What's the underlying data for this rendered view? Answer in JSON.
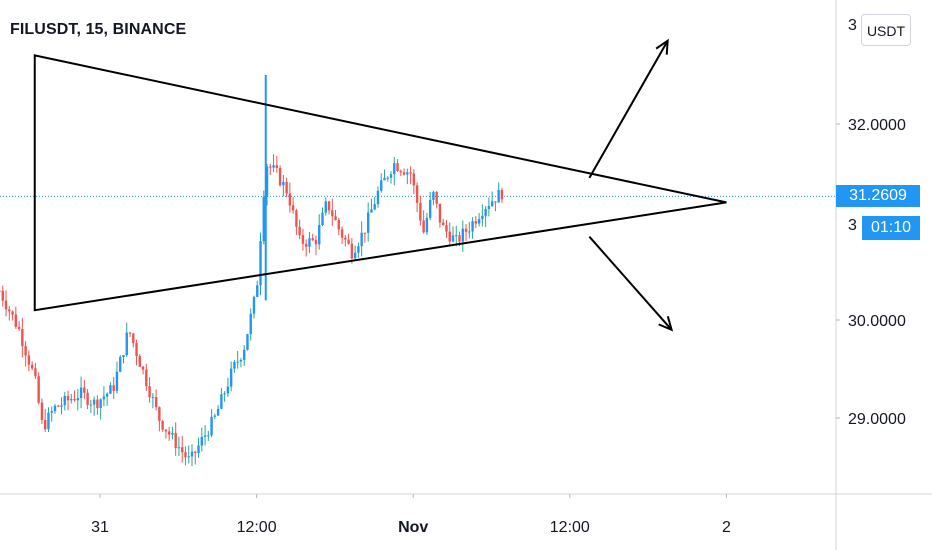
{
  "header": {
    "title": "FILUSDT, 15, BINANCE"
  },
  "scale": {
    "unit_button": "USDT"
  },
  "last_price": {
    "value": "31.2609",
    "countdown": "01:10",
    "line_color": "#2196f3"
  },
  "colors": {
    "up": "#26a69a",
    "up_body": "#2196f3",
    "down": "#ef5350",
    "text": "#131722",
    "grid": "#e0e3eb"
  },
  "chart_data": {
    "type": "candlestick",
    "symbol": "FILUSDT",
    "interval": "15",
    "exchange": "BINANCE",
    "title": "FILUSDT, 15, BINANCE",
    "y_ticks": [
      {
        "value": 32.0,
        "label": "32.0000"
      },
      {
        "value": 30.0,
        "label": "30.0000"
      },
      {
        "value": 29.0,
        "label": "29.0000"
      }
    ],
    "y_partial_labels": [
      {
        "value": 33.0,
        "label": "3"
      },
      {
        "value": 31.0,
        "label": "3"
      }
    ],
    "x_ticks": [
      {
        "t": 0,
        "label": "31"
      },
      {
        "t": 12,
        "label": "12:00"
      },
      {
        "t": 24,
        "label": "Nov"
      },
      {
        "t": 36,
        "label": "12:00"
      },
      {
        "t": 48,
        "label": "2"
      }
    ],
    "x_range_hours": [
      -7.7,
      56.5
    ],
    "y_range": [
      28.2,
      33.3
    ],
    "price_keypoints": [
      [
        -7.7,
        30.3
      ],
      [
        -6.2,
        29.9
      ],
      [
        -5.0,
        29.4
      ],
      [
        -4.4,
        28.9
      ],
      [
        -3.5,
        29.1
      ],
      [
        -2.2,
        29.2
      ],
      [
        -1.5,
        29.25
      ],
      [
        -0.4,
        29.15
      ],
      [
        1.0,
        29.3
      ],
      [
        2.2,
        29.9
      ],
      [
        3.5,
        29.4
      ],
      [
        4.5,
        29.0
      ],
      [
        5.5,
        28.8
      ],
      [
        6.9,
        28.55
      ],
      [
        7.7,
        28.75
      ],
      [
        8.8,
        29.0
      ],
      [
        10.2,
        29.5
      ],
      [
        11.0,
        29.7
      ],
      [
        12.0,
        30.3
      ],
      [
        12.7,
        31.6
      ],
      [
        13.5,
        31.5
      ],
      [
        14.4,
        31.3
      ],
      [
        15.3,
        30.8
      ],
      [
        16.5,
        30.8
      ],
      [
        17.4,
        31.2
      ],
      [
        18.4,
        30.9
      ],
      [
        19.3,
        30.7
      ],
      [
        20.2,
        30.9
      ],
      [
        21.3,
        31.3
      ],
      [
        22.5,
        31.6
      ],
      [
        23.8,
        31.5
      ],
      [
        24.8,
        30.9
      ],
      [
        25.5,
        31.3
      ],
      [
        26.2,
        30.95
      ],
      [
        27.3,
        30.8
      ],
      [
        28.3,
        30.95
      ],
      [
        29.4,
        31.15
      ],
      [
        29.8,
        31.2
      ],
      [
        30.8,
        31.3
      ]
    ],
    "drawings": [
      {
        "type": "triangle",
        "points": [
          [
            -5.0,
            32.7
          ],
          [
            -5.0,
            30.1
          ],
          [
            48.0,
            31.2
          ]
        ]
      },
      {
        "type": "arrow",
        "from": [
          37.5,
          31.45
        ],
        "to": [
          43.5,
          32.85
        ]
      },
      {
        "type": "arrow",
        "from": [
          37.5,
          30.85
        ],
        "to": [
          43.8,
          29.9
        ]
      }
    ]
  }
}
